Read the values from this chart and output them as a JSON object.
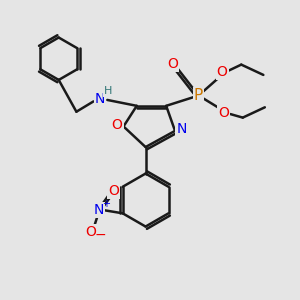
{
  "background_color": "#e5e5e5",
  "bond_color": "#1a1a1a",
  "bond_width": 1.8,
  "atom_colors": {
    "N": "#0000ee",
    "O": "#ee0000",
    "P": "#cc7700",
    "H": "#337777",
    "C": "#1a1a1a"
  }
}
